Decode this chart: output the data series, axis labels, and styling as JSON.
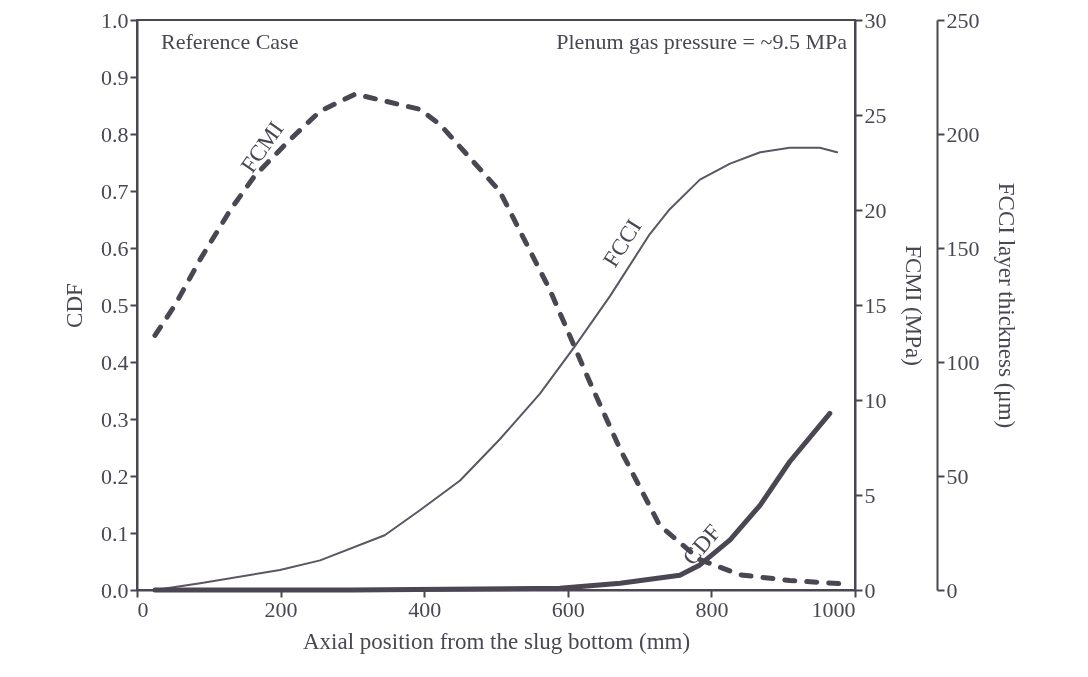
{
  "chart_data": {
    "type": "line",
    "xlabel": "Axial position from the slug bottom (mm)",
    "ylabel": "CDF",
    "y2label": "FCMI   (MPa)",
    "y3label": "FCCI layer thickness  (μm)",
    "annotations": [
      "Reference Case",
      "Plenum gas pressure = ~9.5 MPa"
    ],
    "xlim": [
      0,
      1000
    ],
    "xticks": [
      0,
      200,
      400,
      600,
      800,
      1000
    ],
    "ylim": [
      0,
      1
    ],
    "yticks": [
      {
        "value": 0,
        "label": "0.0"
      },
      {
        "value": 0.1,
        "label": "0.1"
      },
      {
        "value": 0.2,
        "label": "0.2"
      },
      {
        "value": 0.3,
        "label": "0.3"
      },
      {
        "value": 0.4,
        "label": "0.4"
      },
      {
        "value": 0.5,
        "label": "0.5"
      },
      {
        "value": 0.6,
        "label": "0.6"
      },
      {
        "value": 0.7,
        "label": "0.7"
      },
      {
        "value": 0.8,
        "label": "0.8"
      },
      {
        "value": 0.9,
        "label": "0.9"
      },
      {
        "value": 1,
        "label": "1.0"
      }
    ],
    "y2lim": [
      0,
      30
    ],
    "y2ticks": [
      0,
      5,
      10,
      15,
      20,
      25,
      30
    ],
    "y3lim": [
      0,
      250
    ],
    "y3ticks": [
      0,
      50,
      100,
      150,
      200,
      250
    ],
    "grid": false,
    "series": [
      {
        "name": "FCMI",
        "color": "#4a4652",
        "axis": "y2",
        "line_style": "dashed",
        "x": [
          25,
          53,
          88,
          130,
          164,
          213,
          255,
          304,
          394,
          422,
          505,
          575,
          630,
          673,
          728,
          784,
          840,
          909,
          951,
          993
        ],
        "values": [
          13.4,
          15,
          17.4,
          20,
          21.8,
          23.7,
          25.2,
          26.1,
          25.3,
          24.5,
          21,
          15.8,
          11,
          7.4,
          3.4,
          1.6,
          0.8,
          0.5,
          0.4,
          0.3
        ]
      },
      {
        "name": "FCCI",
        "color": "#5a5662",
        "axis": "y3",
        "line_style": "solid",
        "x": [
          25,
          88,
          199,
          255,
          345,
          394,
          450,
          505,
          561,
          610,
          659,
          714,
          742,
          784,
          826,
          868,
          909,
          951,
          975
        ],
        "values": [
          0,
          3,
          8.8,
          13,
          24,
          35,
          48,
          66,
          86,
          107,
          129,
          156,
          167,
          180,
          187,
          192,
          194,
          194,
          192
        ]
      },
      {
        "name": "CDF",
        "color": "#4a4652",
        "axis": "y",
        "line_style": "solid",
        "x": [
          25,
          300,
          589,
          673,
          756,
          784,
          826,
          868,
          909,
          965
        ],
        "values": [
          0,
          0,
          0.003,
          0.012,
          0.026,
          0.044,
          0.088,
          0.149,
          0.225,
          0.31
        ]
      }
    ]
  }
}
